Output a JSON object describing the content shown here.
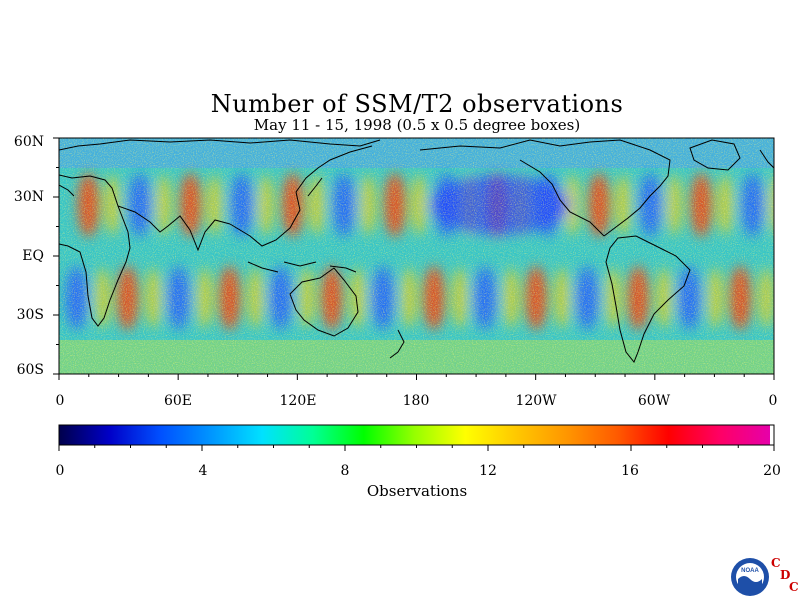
{
  "title": "Number of SSM/T2 observations",
  "subtitle": "May 11 - 15, 1998 (0.5 x 0.5 degree boxes)",
  "lat_labels": [
    "60N",
    "30N",
    "EQ",
    "30S",
    "60S"
  ],
  "lon_labels": [
    "0",
    "60E",
    "120E",
    "180",
    "120W",
    "60W",
    "0"
  ],
  "colorbar": {
    "ticks": [
      "0",
      "4",
      "8",
      "12",
      "16",
      "20"
    ],
    "label": "Observations",
    "min": 0,
    "max": 20,
    "colors": [
      "#00004b",
      "#0000c8",
      "#0050ff",
      "#0096ff",
      "#00e1ff",
      "#00ff96",
      "#00ff00",
      "#96ff00",
      "#ffff00",
      "#ffc800",
      "#ff9600",
      "#ff5a00",
      "#ff0000",
      "#ff0064",
      "#e600aa"
    ]
  },
  "logo": {
    "agency": "NOAA",
    "letters": [
      "C",
      "D",
      "C"
    ],
    "accent_color": "#cc0000"
  },
  "map_colors": {
    "low": "#1e5aff",
    "mid": "#34c8c8",
    "high": "#ff3c00",
    "coast": "#000000"
  }
}
